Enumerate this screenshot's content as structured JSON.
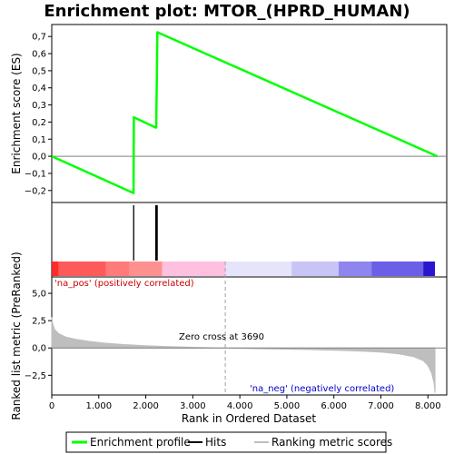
{
  "chart_data": {
    "title": "Enrichment plot: MTOR_(HPRD_HUMAN)",
    "top_panel": {
      "type": "line",
      "ylabel": "Enrichment score (ES)",
      "ylim": [
        -0.27,
        0.77
      ],
      "yticks": [
        -0.2,
        -0.1,
        0.0,
        0.1,
        0.2,
        0.3,
        0.4,
        0.5,
        0.6,
        0.7
      ],
      "ytick_labels": [
        "−0,2",
        "−0,1",
        "0,0",
        "0,1",
        "0,2",
        "0,3",
        "0,4",
        "0,5",
        "0,6",
        "0,7"
      ],
      "series": [
        {
          "name": "Enrichment profile",
          "color": "#00ff00",
          "x": [
            0,
            1740,
            1745,
            2210,
            2220,
            2235,
            2245,
            8200
          ],
          "y": [
            0.0,
            -0.215,
            0.228,
            0.168,
            0.168,
            0.45,
            0.725,
            0.0
          ]
        }
      ]
    },
    "hits": {
      "name": "Hits",
      "positions": [
        1740,
        1745,
        2210,
        2220,
        2235,
        2245
      ]
    },
    "color_bar": {
      "segments": [
        {
          "start": 0,
          "end": 150,
          "color": "#ff2a2a"
        },
        {
          "start": 150,
          "end": 1150,
          "color": "#ff5a5a"
        },
        {
          "start": 1150,
          "end": 1650,
          "color": "#ff7a7a"
        },
        {
          "start": 1650,
          "end": 2350,
          "color": "#ff9090"
        },
        {
          "start": 2350,
          "end": 3700,
          "color": "#ffc0e0"
        },
        {
          "start": 3700,
          "end": 5100,
          "color": "#e6e4fb"
        },
        {
          "start": 5100,
          "end": 6100,
          "color": "#c8c4f6"
        },
        {
          "start": 6100,
          "end": 6800,
          "color": "#8e86ee"
        },
        {
          "start": 6800,
          "end": 7900,
          "color": "#6a5fe6"
        },
        {
          "start": 7900,
          "end": 8150,
          "color": "#2a16cc"
        }
      ]
    },
    "bottom_panel": {
      "type": "area",
      "ylabel": "Ranked list metric (PreRanked)",
      "ylim": [
        -4.3,
        6.5
      ],
      "yticks": [
        -2.5,
        0.0,
        2.5,
        5.0
      ],
      "ytick_labels": [
        "−2,5",
        "0,0",
        "2,5",
        "5,0"
      ],
      "series": [
        {
          "name": "Ranking metric scores",
          "color": "#bebebe",
          "x": [
            0,
            20,
            60,
            150,
            300,
            500,
            800,
            1100,
            1500,
            2000,
            2500,
            3000,
            3690,
            4500,
            5500,
            6500,
            7000,
            7400,
            7700,
            7900,
            8000,
            8080,
            8130,
            8150
          ],
          "y": [
            2.8,
            2.2,
            1.7,
            1.3,
            1.0,
            0.8,
            0.6,
            0.45,
            0.32,
            0.2,
            0.12,
            0.06,
            0.0,
            -0.07,
            -0.15,
            -0.27,
            -0.38,
            -0.55,
            -0.8,
            -1.15,
            -1.6,
            -2.3,
            -3.2,
            -4.1
          ]
        }
      ],
      "annotations": {
        "pos_label": "'na_pos' (positively correlated)",
        "neg_label": "'na_neg' (negatively correlated)",
        "zero_cross": "Zero cross at 3690",
        "zero_cross_x": 3690,
        "pos_color": "#cc0000",
        "neg_color": "#0000cc"
      }
    },
    "xaxis": {
      "xlabel": "Rank in Ordered Dataset",
      "xlim": [
        0,
        8400
      ],
      "xticks": [
        0,
        1000,
        2000,
        3000,
        4000,
        5000,
        6000,
        7000,
        8000
      ],
      "xtick_labels": [
        "0",
        "1.000",
        "2.000",
        "3.000",
        "4.000",
        "5.000",
        "6.000",
        "7.000",
        "8.000"
      ]
    },
    "legend": {
      "placement": "bottom",
      "entries": [
        {
          "label": "Enrichment profile",
          "color": "#00ff00"
        },
        {
          "label": "Hits",
          "color": "#000000"
        },
        {
          "label": "Ranking metric scores",
          "color": "#bebebe"
        }
      ]
    }
  }
}
